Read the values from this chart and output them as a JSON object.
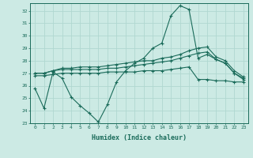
{
  "xlabel": "Humidex (Indice chaleur)",
  "bg_color": "#cceae4",
  "line_color": "#1a6b5a",
  "grid_color": "#b0d8d0",
  "xlim": [
    -0.5,
    23.5
  ],
  "ylim": [
    23,
    32.6
  ],
  "yticks": [
    23,
    24,
    25,
    26,
    27,
    28,
    29,
    30,
    31,
    32
  ],
  "xticks": [
    0,
    1,
    2,
    3,
    4,
    5,
    6,
    7,
    8,
    9,
    10,
    11,
    12,
    13,
    14,
    15,
    16,
    17,
    18,
    19,
    20,
    21,
    22,
    23
  ],
  "line1_x": [
    0,
    1,
    2,
    3,
    4,
    5,
    6,
    7,
    8,
    9,
    10,
    11,
    12,
    13,
    14,
    15,
    16,
    17,
    18,
    19,
    20,
    21,
    22,
    23
  ],
  "line1_y": [
    25.8,
    24.2,
    27.1,
    26.6,
    25.1,
    24.4,
    23.8,
    23.1,
    24.5,
    26.3,
    27.2,
    27.8,
    28.2,
    29.0,
    29.4,
    31.6,
    32.4,
    32.1,
    28.2,
    28.5,
    28.1,
    27.8,
    27.0,
    26.6
  ],
  "line2_x": [
    0,
    1,
    2,
    3,
    4,
    5,
    6,
    7,
    8,
    9,
    10,
    11,
    12,
    13,
    14,
    15,
    16,
    17,
    18,
    19,
    20,
    21,
    22,
    23
  ],
  "line2_y": [
    27.0,
    27.0,
    27.2,
    27.3,
    27.3,
    27.3,
    27.3,
    27.3,
    27.4,
    27.4,
    27.5,
    27.6,
    27.7,
    27.8,
    27.9,
    28.0,
    28.2,
    28.4,
    28.6,
    28.7,
    28.1,
    27.8,
    27.0,
    26.5
  ],
  "line3_x": [
    0,
    1,
    2,
    3,
    4,
    5,
    6,
    7,
    8,
    9,
    10,
    11,
    12,
    13,
    14,
    15,
    16,
    17,
    18,
    19,
    20,
    21,
    22,
    23
  ],
  "line3_y": [
    27.0,
    27.0,
    27.2,
    27.4,
    27.4,
    27.5,
    27.5,
    27.5,
    27.6,
    27.7,
    27.8,
    27.9,
    28.0,
    28.0,
    28.2,
    28.3,
    28.5,
    28.8,
    29.0,
    29.1,
    28.3,
    28.0,
    27.2,
    26.7
  ],
  "line4_x": [
    0,
    1,
    2,
    3,
    4,
    5,
    6,
    7,
    8,
    9,
    10,
    11,
    12,
    13,
    14,
    15,
    16,
    17,
    18,
    19,
    20,
    21,
    22,
    23
  ],
  "line4_y": [
    26.8,
    26.8,
    26.9,
    27.0,
    27.0,
    27.0,
    27.0,
    27.0,
    27.1,
    27.1,
    27.1,
    27.1,
    27.2,
    27.2,
    27.2,
    27.3,
    27.4,
    27.5,
    26.5,
    26.5,
    26.4,
    26.4,
    26.3,
    26.3
  ]
}
